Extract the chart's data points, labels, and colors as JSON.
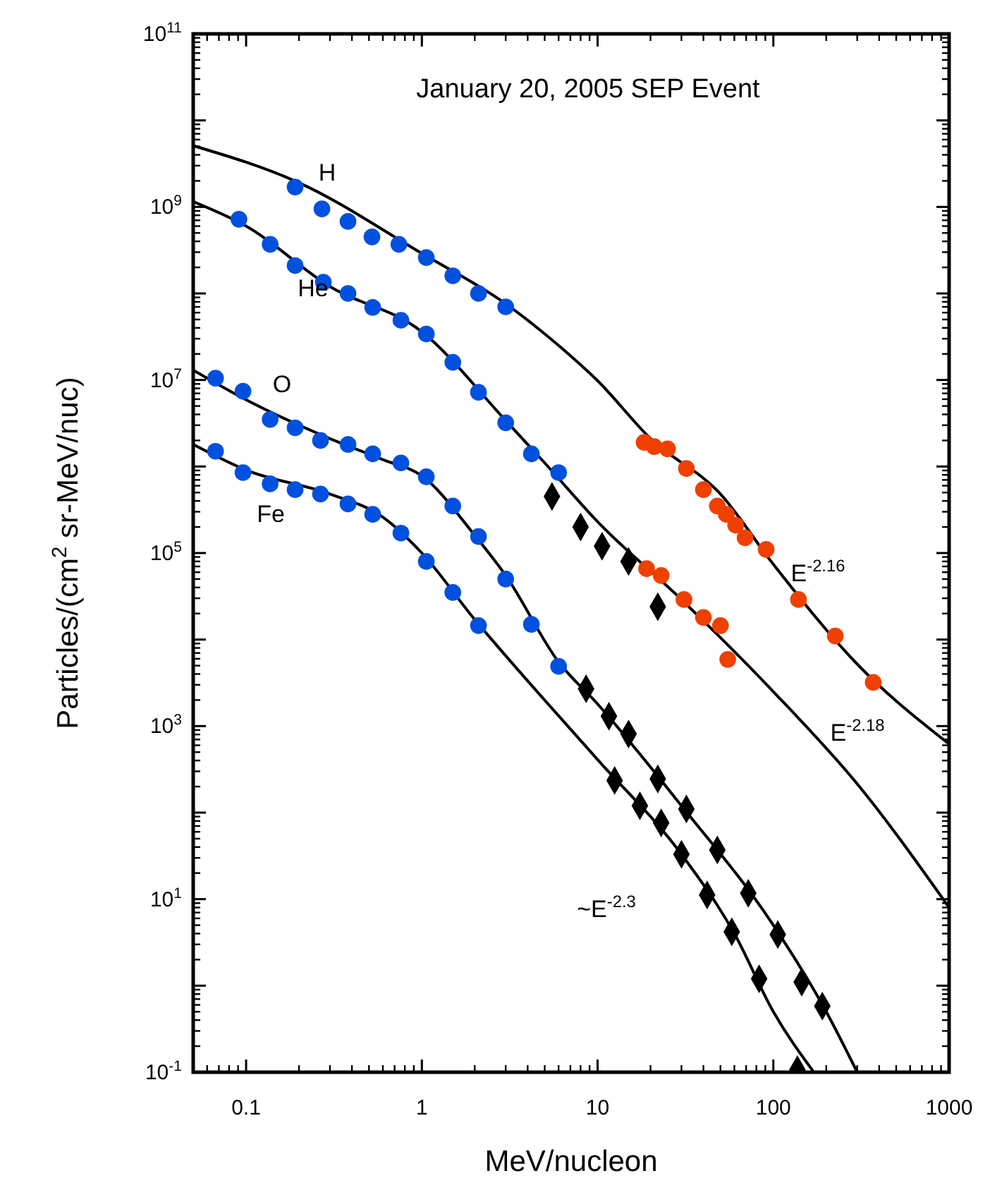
{
  "chart_data": {
    "type": "scatter",
    "title": "January 20, 2005 SEP Event",
    "xlabel": "MeV/nucleon",
    "ylabel": "Particles/(cm$^{2}$ sr-MeV/nuc)",
    "log": "xy",
    "grid": false,
    "xlim": [
      0.05,
      1000
    ],
    "xticks": [
      0.1,
      1,
      10,
      100,
      1000
    ],
    "ylim": [
      0.1,
      100000000000.0
    ],
    "yticks": [
      {
        "value": 0.1,
        "label": "10$^{-1}$"
      },
      {
        "value": 1,
        "label": null
      },
      {
        "value": 10,
        "label": "10$^{1}$"
      },
      {
        "value": 100,
        "label": null
      },
      {
        "value": 1000,
        "label": "10$^{3}$"
      },
      {
        "value": 10000.0,
        "label": null
      },
      {
        "value": 100000.0,
        "label": "10$^{5}$"
      },
      {
        "value": 1000000.0,
        "label": null
      },
      {
        "value": 10000000.0,
        "label": "10$^{7}$"
      },
      {
        "value": 100000000.0,
        "label": null
      },
      {
        "value": 1000000000.0,
        "label": "10$^{9}$"
      },
      {
        "value": 10000000000.0,
        "label": null
      },
      {
        "value": 100000000000.0,
        "label": "10$^{11}$"
      }
    ],
    "series": [
      {
        "type": "line",
        "color": "#000000",
        "marker": "none",
        "x": [
          0.05,
          0.2,
          1,
          3,
          6,
          10,
          20,
          50,
          100,
          300,
          1000
        ],
        "values": [
          5100000000.0,
          1900000000.0,
          290000000.0,
          76000000.0,
          25000000.0,
          9800000.0,
          2100000.0,
          480000.0,
          74000.0,
          5200.0,
          620
        ]
      },
      {
        "type": "line",
        "color": "#000000",
        "marker": "none",
        "x": [
          0.05,
          0.1,
          0.3,
          1,
          3,
          5,
          10,
          30,
          100,
          300,
          1000
        ],
        "values": [
          1150000000.0,
          600000000.0,
          120000000.0,
          36000000.0,
          3400000.0,
          1100000.0,
          230000.0,
          29000.0,
          2500.0,
          215,
          8
        ]
      },
      {
        "type": "line",
        "color": "#000000",
        "marker": "none",
        "x": [
          0.05,
          0.1,
          0.3,
          0.6,
          1,
          2,
          3,
          6,
          10,
          30,
          100,
          200,
          300
        ],
        "values": [
          13000000.0,
          5900000.0,
          2100000.0,
          1200000.0,
          780000.0,
          160000.0,
          55000.0,
          5500.0,
          1800.0,
          120,
          5,
          0.5,
          0.1
        ]
      },
      {
        "type": "line",
        "color": "#000000",
        "marker": "none",
        "x": [
          0.05,
          0.1,
          0.3,
          0.6,
          1,
          2,
          3,
          10,
          30,
          60,
          100,
          170
        ],
        "values": [
          1800000.0,
          910000.0,
          480000.0,
          260000.0,
          100000.0,
          17000.0,
          6500.0,
          410,
          33,
          4,
          0.5,
          0.1
        ]
      },
      {
        "color": "#0050e0",
        "marker": "circle",
        "x": [
          0.19,
          0.27,
          0.38,
          0.52,
          0.74,
          1.06,
          1.5,
          2.1,
          3.0
        ],
        "values": [
          1700000000.0,
          950000000.0,
          680000000.0,
          450000000.0,
          370000000.0,
          260000000.0,
          160000000.0,
          100000000.0,
          70000000.0
        ]
      },
      {
        "color": "#f04000",
        "marker": "circle",
        "x": [
          18.4,
          21,
          25,
          32,
          40,
          48,
          54,
          61,
          69,
          91,
          139,
          225,
          370
        ],
        "values": [
          1900000.0,
          1700000.0,
          1600000.0,
          950000.0,
          540000.0,
          350000.0,
          280000.0,
          210000.0,
          150000.0,
          110000.0,
          29000.0,
          11000.0,
          3200.0
        ]
      },
      {
        "color": "#0050e0",
        "marker": "circle",
        "x": [
          0.091,
          0.137,
          0.19,
          0.275,
          0.38,
          0.525,
          0.76,
          1.06,
          1.5,
          2.1,
          3.0,
          4.2,
          6.0
        ],
        "values": [
          720000000.0,
          370000000.0,
          210000000.0,
          135000000.0,
          100000000.0,
          69000000.0,
          49000000.0,
          34000000.0,
          16000000.0,
          7200000.0,
          3200000.0,
          1400000.0,
          850000.0
        ]
      },
      {
        "color": "#000000",
        "marker": "diamond",
        "x": [
          5.5,
          8.0,
          10.6,
          15,
          22
        ],
        "values": [
          450000.0,
          200000.0,
          120000.0,
          80000.0,
          24000.0
        ]
      },
      {
        "color": "#f04000",
        "marker": "circle",
        "x": [
          19,
          23,
          31,
          40,
          50,
          55
        ],
        "values": [
          66000.0,
          55000.0,
          29000.0,
          18000.0,
          14500.0,
          5900.0
        ]
      },
      {
        "color": "#0050e0",
        "marker": "circle",
        "x": [
          0.067,
          0.096,
          0.137,
          0.19,
          0.265,
          0.38,
          0.525,
          0.76,
          1.06,
          1.5,
          2.1,
          3.0,
          4.2,
          6.0
        ],
        "values": [
          10500000.0,
          7400000.0,
          3500000.0,
          2800000.0,
          2000000.0,
          1800000.0,
          1400000.0,
          1100000.0,
          760000.0,
          350000.0,
          155000.0,
          50000.0,
          15000.0,
          4900.0
        ]
      },
      {
        "color": "#000000",
        "marker": "diamond",
        "x": [
          8.6,
          11.6,
          15,
          22,
          32,
          48,
          72,
          106,
          145,
          190
        ],
        "values": [
          2700.0,
          1300.0,
          810,
          245,
          110,
          37,
          11.7,
          3.9,
          1.1,
          0.58
        ]
      },
      {
        "color": "#0050e0",
        "marker": "circle",
        "x": [
          0.067,
          0.096,
          0.137,
          0.19,
          0.265,
          0.38,
          0.525,
          0.76,
          1.06,
          1.5,
          2.1
        ],
        "values": [
          1500000.0,
          850000.0,
          630000.0,
          540000.0,
          480000.0,
          370000.0,
          280000.0,
          170000.0,
          80000.0,
          35000.0,
          14500.0
        ]
      },
      {
        "color": "#000000",
        "marker": "diamond",
        "x": [
          12.5,
          17.4,
          23,
          30,
          42,
          58,
          83,
          137
        ],
        "values": [
          235,
          120,
          76,
          33,
          11.2,
          4.2,
          1.2,
          0.107
        ]
      }
    ],
    "annotations": [
      "H",
      "He",
      "O",
      "Fe",
      "E$^{-2.16}$",
      "E$^{-2.18}$",
      "~E$^{-2.3}$"
    ]
  }
}
